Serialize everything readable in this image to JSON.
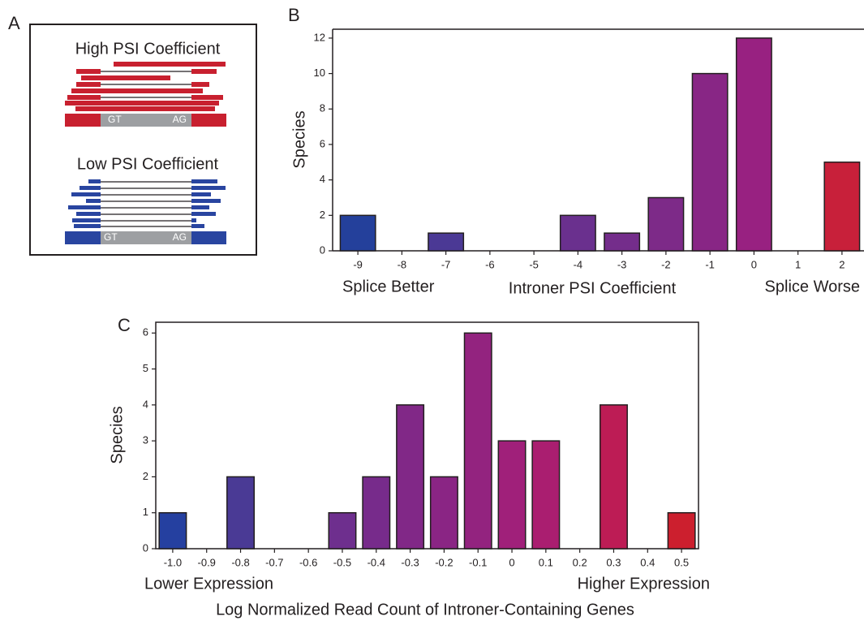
{
  "panel_labels": [
    "A",
    "B",
    "C"
  ],
  "diagram": {
    "top": {
      "title": "High PSI Coefficient",
      "left_site": "GT",
      "right_site": "AG"
    },
    "bottom": {
      "title": "Low PSI Coefficient",
      "left_site": "GT",
      "right_site": "AG"
    }
  },
  "chart_data": [
    {
      "type": "bar",
      "x_label": "Introner PSI Coefficient",
      "y_label": "Species",
      "annotations": [
        "Splice Better",
        "Splice Worse"
      ],
      "categories": [
        "-9",
        "-8",
        "-7",
        "-6",
        "-5",
        "-4",
        "-3",
        "-2",
        "-1",
        "0",
        "1",
        "2"
      ],
      "values": [
        2,
        0,
        1,
        0,
        0,
        2,
        1,
        3,
        10,
        12,
        0,
        5
      ],
      "colors": [
        "#24409b",
        "#3a3d98",
        "#4b3995",
        "#573692",
        "#613390",
        "#6a308e",
        "#742d8b",
        "#7d2a88",
        "#882685",
        "#982181",
        "#b01e5a",
        "#c8203a"
      ],
      "ylim": [
        0,
        12.5
      ],
      "yticks": [
        0,
        2,
        4,
        6,
        8,
        10,
        12
      ]
    },
    {
      "type": "bar",
      "x_label": "Log Normalized Read Count of Introner-Containing Genes",
      "y_label": "Species",
      "annotations": [
        "Lower Expression",
        "Higher Expression"
      ],
      "categories": [
        "-1.0",
        "-0.9",
        "-0.8",
        "-0.7",
        "-0.6",
        "-0.5",
        "-0.4",
        "-0.3",
        "-0.2",
        "-0.1",
        "0",
        "0.1",
        "0.2",
        "0.3",
        "0.4",
        "0.5"
      ],
      "values": [
        1,
        0,
        2,
        0,
        0,
        1,
        2,
        4,
        2,
        6,
        3,
        3,
        0,
        4,
        0,
        1
      ],
      "colors": [
        "#2540a0",
        "#3a3d98",
        "#4a3a95",
        "#5a3692",
        "#64328f",
        "#6e2f8e",
        "#772b8b",
        "#812887",
        "#8a2584",
        "#93237f",
        "#a0207a",
        "#aa1e70",
        "#b41d62",
        "#bd1c55",
        "#c41d42",
        "#cc1f2e"
      ],
      "ylim": [
        0,
        6.3
      ],
      "yticks": [
        0,
        1,
        2,
        3,
        4,
        5,
        6
      ]
    }
  ]
}
